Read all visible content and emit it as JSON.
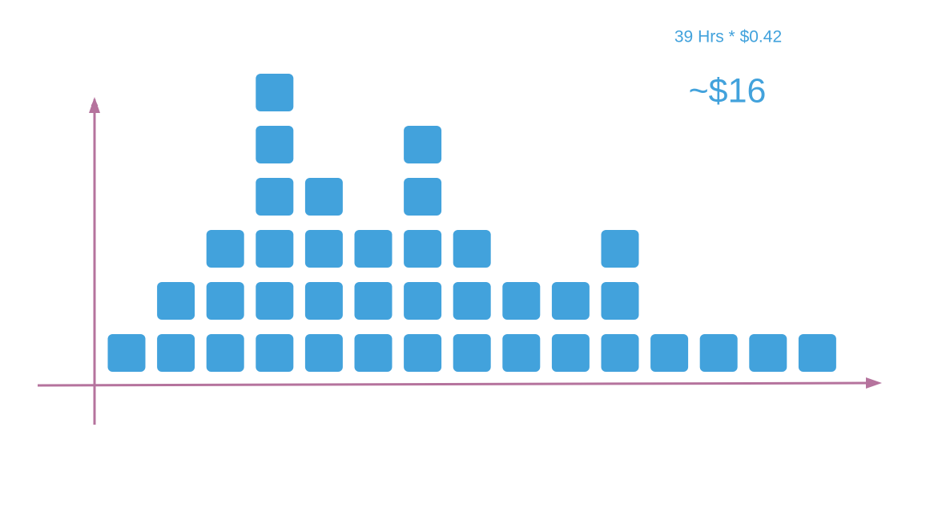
{
  "chart_data": {
    "type": "dotplot",
    "annotations": [
      "39 Hrs * $0.42",
      "~$16"
    ],
    "values": [
      1,
      2,
      3,
      6,
      4,
      3,
      5,
      3,
      2,
      2,
      3,
      1,
      1,
      1,
      1
    ],
    "color": "#42a2dc"
  }
}
